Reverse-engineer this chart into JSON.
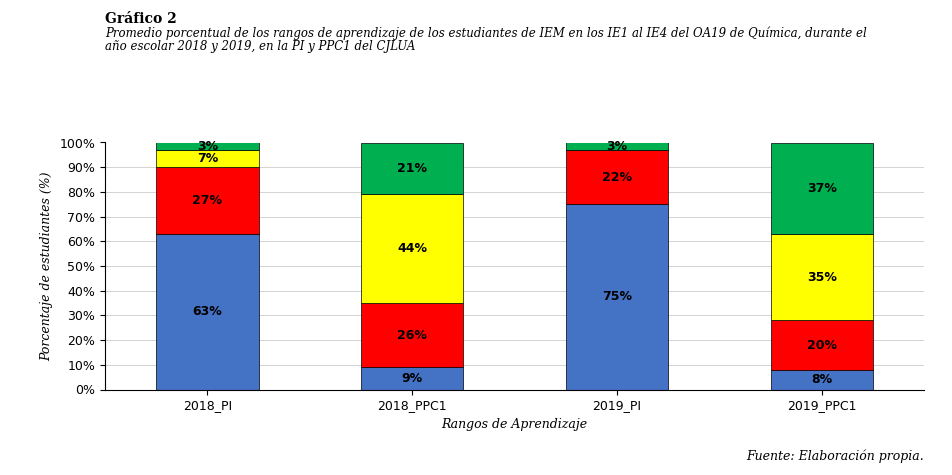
{
  "categories": [
    "2018_PI",
    "2018_PPC1",
    "2019_PI",
    "2019_PPC1"
  ],
  "series": {
    "Insuficiente": [
      63,
      9,
      75,
      8
    ],
    "Aceptable": [
      27,
      26,
      22,
      20
    ],
    "Bueno": [
      7,
      44,
      0,
      35
    ],
    "Muy Bueno": [
      3,
      21,
      3,
      37
    ]
  },
  "colors": {
    "Insuficiente": "#4472C4",
    "Aceptable": "#FF0000",
    "Bueno": "#FFFF00",
    "Muy Bueno": "#00B050"
  },
  "ylabel": "Porcentaje de estudiantes (%)",
  "xlabel": "Rangos de Aprendizaje",
  "yticks": [
    0,
    10,
    20,
    30,
    40,
    50,
    60,
    70,
    80,
    90,
    100
  ],
  "ytick_labels": [
    "0%",
    "10%",
    "20%",
    "30%",
    "40%",
    "50%",
    "60%",
    "70%",
    "80%",
    "90%",
    "100%"
  ],
  "title_bold": "Gráfico 2",
  "title_italic_line1": "Promedio porcentual de los rangos de aprendizaje de los estudiantes de IEM en los IE1 al IE4 del OA19 de Química, durante el",
  "title_italic_line2": "año escolar 2018 y 2019, en la PI y PPC1 del CJLUA",
  "source": "Fuente: Elaboración propia.",
  "bar_width": 0.5,
  "label_fontsize": 9,
  "axis_label_fontsize": 9,
  "tick_fontsize": 9,
  "legend_fontsize": 9
}
